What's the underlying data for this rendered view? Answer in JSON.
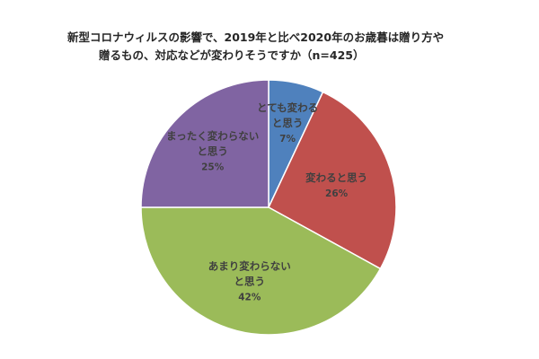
{
  "chart_data": {
    "type": "pie",
    "title_lines": [
      "新型コロナウィルスの影響で、2019年と比べ2020年のお歳暮は贈り方や",
      "贈るもの、対応などが変わりそうですか（n=425）"
    ],
    "slices": [
      {
        "label_lines": [
          "とても変わる",
          "と思う"
        ],
        "value": 7,
        "value_label": "7%",
        "color": "#4f81bd"
      },
      {
        "label_lines": [
          "変わると思う"
        ],
        "value": 26,
        "value_label": "26%",
        "color": "#c0504d"
      },
      {
        "label_lines": [
          "あまり変わらない",
          "と思う"
        ],
        "value": 42,
        "value_label": "42%",
        "color": "#9bbb59"
      },
      {
        "label_lines": [
          "まったく変わらない",
          "と思う"
        ],
        "value": 25,
        "value_label": "25%",
        "color": "#8064a2"
      }
    ]
  }
}
